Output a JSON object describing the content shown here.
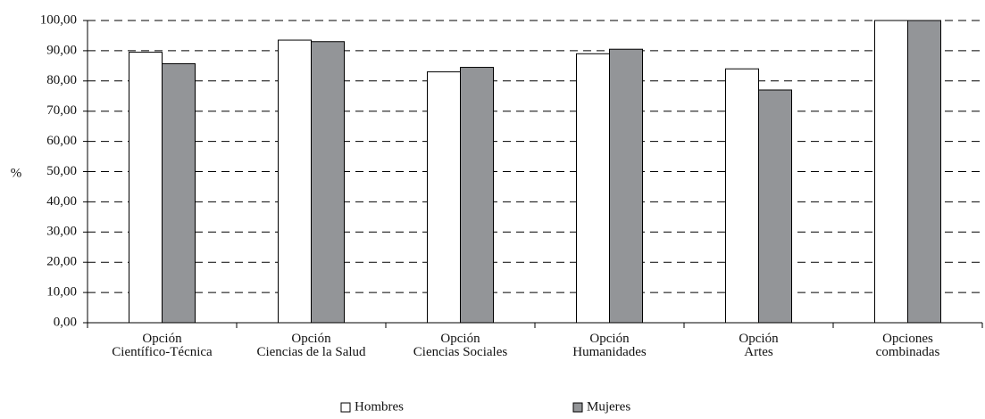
{
  "chart_data": {
    "type": "bar",
    "y_label": "%",
    "categories": [
      "Opción\nCientífico-Técnica",
      "Opción\nCiencias de la  Salud",
      "Opción\nCiencias Sociales",
      "Opción\nHumanidades",
      "Opción\nArtes",
      "Opciones\ncombinadas"
    ],
    "series": [
      {
        "name": "Hombres",
        "color": "#ffffff",
        "values": [
          89.5,
          93.5,
          83,
          89,
          84,
          100
        ]
      },
      {
        "name": "Mujeres",
        "color": "#939598",
        "values": [
          85.7,
          93,
          84.5,
          90.5,
          77,
          100
        ]
      }
    ],
    "ylim": [
      0,
      100
    ],
    "yticks": [
      {
        "value": 0,
        "label": "0,00"
      },
      {
        "value": 10,
        "label": "10,00"
      },
      {
        "value": 20,
        "label": "20,00"
      },
      {
        "value": 30,
        "label": "30,00"
      },
      {
        "value": 40,
        "label": "40,00"
      },
      {
        "value": 50,
        "label": "50,00"
      },
      {
        "value": 60,
        "label": "60,00"
      },
      {
        "value": 70,
        "label": "70,00"
      },
      {
        "value": 80,
        "label": "80,00"
      },
      {
        "value": 90,
        "label": "90,00"
      },
      {
        "value": 100,
        "label": "100,00"
      }
    ],
    "grid": true,
    "legend": "bottom"
  }
}
